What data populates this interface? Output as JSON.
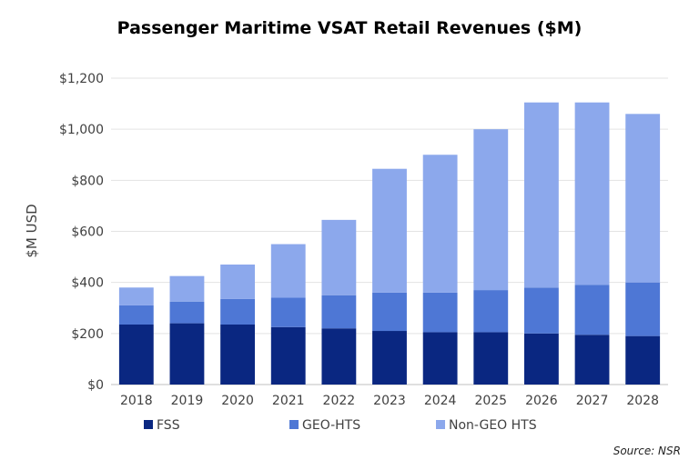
{
  "chart_data": {
    "type": "bar",
    "stacked": true,
    "title": "Passenger Maritime VSAT Retail Revenues ($M)",
    "ylabel": "$M USD",
    "xlabel": "",
    "ylim": [
      0,
      1200
    ],
    "yticks": [
      0,
      200,
      400,
      600,
      800,
      1000,
      1200
    ],
    "ytick_labels": [
      "$0",
      "$200",
      "$400",
      "$600",
      "$800",
      "$1,000",
      "$1,200"
    ],
    "grid": true,
    "legend_position": "bottom",
    "categories": [
      "2018",
      "2019",
      "2020",
      "2021",
      "2022",
      "2023",
      "2024",
      "2025",
      "2026",
      "2027",
      "2028"
    ],
    "series": [
      {
        "name": "FSS",
        "color": "#0a2781",
        "values": [
          235,
          240,
          235,
          225,
          220,
          210,
          205,
          205,
          200,
          195,
          190
        ]
      },
      {
        "name": "GEO-HTS",
        "color": "#4e77d5",
        "values": [
          75,
          85,
          100,
          115,
          130,
          150,
          155,
          165,
          180,
          195,
          210
        ]
      },
      {
        "name": "Non-GEO HTS",
        "color": "#8ca8ec",
        "values": [
          70,
          100,
          135,
          210,
          295,
          485,
          540,
          630,
          725,
          715,
          660
        ]
      }
    ],
    "source": "Source: NSR"
  }
}
